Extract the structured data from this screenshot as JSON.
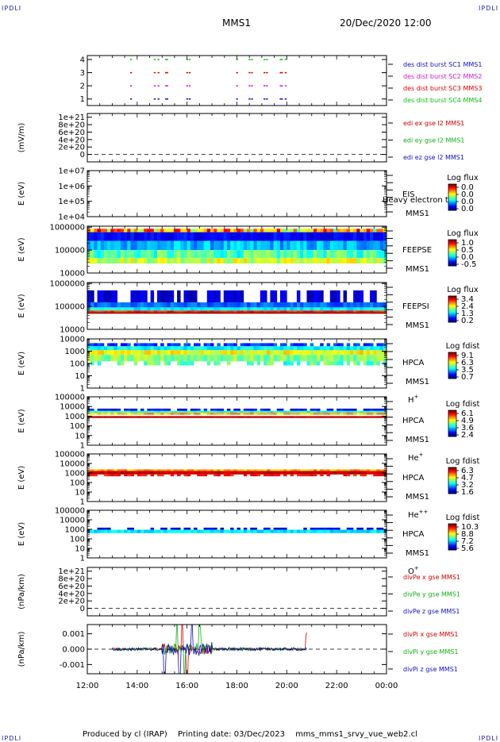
{
  "header": {
    "corner_tl": "IPDLI",
    "corner_tr": "IPDLI",
    "corner_bl": "IPDLI",
    "corner_br": "IPDLI",
    "spacecraft": "MMS1",
    "datetime": "20/Dec/2020 12:00"
  },
  "footer": {
    "produced_by": "Produced by cl (IRAP)",
    "printing_date": "Printing date: 03/Dec/2023",
    "script_name": "mms_mms1_srvy_vue_web2.cl"
  },
  "chart_data": [
    {
      "type": "scatter",
      "panel": "des-dist-burst",
      "ylabel": "",
      "ylim": [
        0.5,
        4.3
      ],
      "yticks": [
        "1",
        "2",
        "3",
        "4"
      ],
      "series": [
        {
          "name": "des dist burst SC1 MMS1",
          "color": "#1010c0",
          "y": 1,
          "x_hours": [
            13.75,
            14.7,
            14.85,
            15.15,
            15.2,
            16.0,
            16.1,
            18.0,
            18.5,
            18.6,
            19.1,
            19.2,
            19.75,
            19.8,
            19.95
          ]
        },
        {
          "name": "des dist burst SC2 MMS2",
          "color": "#d01ad0",
          "y": 2,
          "x_hours": [
            13.75,
            14.7,
            14.85,
            15.15,
            15.2,
            16.0,
            16.1,
            18.0,
            18.5,
            18.6,
            19.1,
            19.2,
            19.75,
            19.8,
            19.95
          ]
        },
        {
          "name": "des dist burst SC3 MMS3",
          "color": "#e00000",
          "y": 3,
          "x_hours": [
            13.75,
            14.7,
            14.85,
            15.15,
            15.2,
            16.0,
            16.1,
            18.0,
            18.5,
            18.6,
            19.1,
            19.2,
            19.75,
            19.8,
            19.95
          ]
        },
        {
          "name": "des dist burst SC4 MMS4",
          "color": "#10c010",
          "y": 4,
          "x_hours": [
            13.75,
            14.7,
            14.85,
            15.15,
            15.2,
            16.0,
            16.1,
            18.0,
            18.5,
            18.6,
            19.1,
            19.2,
            19.75,
            19.8,
            19.95
          ]
        }
      ]
    },
    {
      "type": "line",
      "panel": "edi-e",
      "ylabel": "(mV/m)",
      "ylim": [
        -2e+20,
        1.1e+21
      ],
      "yticks": [
        "0",
        "2e+20",
        "4e+20",
        "6e+20",
        "8e+20",
        "1e+21"
      ],
      "zero_line": true,
      "series": [
        {
          "name": "edi ex gse l2 MMS1",
          "color": "#d00000",
          "values": []
        },
        {
          "name": "edi ey gse l2 MMS1",
          "color": "#10b010",
          "values": []
        },
        {
          "name": "edi ez gse l2 MMS1",
          "color": "#1010c0",
          "values": []
        }
      ]
    },
    {
      "type": "heatmap",
      "panel": "eis",
      "ylabel": "E (eV)",
      "yscale": "log",
      "ylim": [
        10000.0,
        10000000.0
      ],
      "yticks": [
        "1e+04",
        "1e+05",
        "1e+06",
        "1e+07"
      ],
      "instrument": "EIS",
      "instrument_line2": "MMS1",
      "overlay_text": "Heavy electron to",
      "colorbar": {
        "title": "Log flux",
        "ticks": [
          "0.0",
          "0.0",
          "0.0",
          "0.0"
        ]
      },
      "data_bands": []
    },
    {
      "type": "heatmap",
      "panel": "feeps-e",
      "ylabel": "E (eV)",
      "yscale": "log",
      "ylim": [
        10000.0,
        1100000.0
      ],
      "yticks": [
        "10000",
        "100000",
        "1000000"
      ],
      "instrument": "FEEPSE",
      "instrument_line2": "MMS1",
      "colorbar": {
        "title": "Log flux",
        "ticks": [
          "1.0",
          "0.5",
          "0.0",
          "-0.5"
        ]
      },
      "x_range_hours": [
        12.0,
        24.0
      ],
      "data_bands": [
        {
          "e_low": 600000.0,
          "e_high": 850000.0,
          "level": 0.7,
          "speckle": 0.25
        },
        {
          "e_low": 250000.0,
          "e_high": 600000.0,
          "level": 0.12,
          "speckle": 0.05
        },
        {
          "e_low": 100000.0,
          "e_high": 250000.0,
          "level": 0.3,
          "speckle": 0.08
        },
        {
          "e_low": 45000.0,
          "e_high": 100000.0,
          "level": 0.45,
          "speckle": 0.1
        },
        {
          "e_low": 26000.0,
          "e_high": 45000.0,
          "level": 0.58,
          "speckle": 0.1
        }
      ]
    },
    {
      "type": "heatmap",
      "panel": "feeps-i",
      "ylabel": "E (eV)",
      "yscale": "log",
      "ylim": [
        10000.0,
        1100000.0
      ],
      "yticks": [
        "10000",
        "100000",
        "1000000"
      ],
      "instrument": "FEEPSI",
      "instrument_line2": "MMS1",
      "colorbar": {
        "title": "Log flux",
        "ticks": [
          "3.4",
          "2.4",
          "1.3",
          "0.2"
        ]
      },
      "x_range_hours": [
        12.0,
        24.0
      ],
      "data_bands": [
        {
          "e_low": 150000.0,
          "e_high": 500000.0,
          "level": 0.08,
          "speckle": 0.05,
          "sparse": 0.55
        },
        {
          "e_low": 90000.0,
          "e_high": 150000.0,
          "level": 0.22,
          "speckle": 0.06
        },
        {
          "e_low": 65000.0,
          "e_high": 90000.0,
          "level": 0.38,
          "speckle": 0.06
        },
        {
          "e_low": 55000.0,
          "e_high": 65000.0,
          "level": 0.85,
          "speckle": 0.05
        },
        {
          "e_low": 48000.0,
          "e_high": 55000.0,
          "level": 0.97,
          "speckle": 0.02
        }
      ]
    },
    {
      "type": "heatmap",
      "panel": "hpca-h",
      "ylabel": "E (eV)",
      "yscale": "log",
      "ylim": [
        1,
        10000.0
      ],
      "yticks": [
        "1",
        "10",
        "100",
        "1000",
        "10000"
      ],
      "instrument": "HPCA",
      "instrument_line2": "MMS1",
      "species": "H",
      "species_sup": "+",
      "colorbar": {
        "title": "Log fdist",
        "ticks": [
          "9.1",
          "6.3",
          "3.5",
          "0.7"
        ]
      },
      "x_range_hours": [
        12.0,
        24.0
      ],
      "data_bands": [
        {
          "e_low": 2500,
          "e_high": 4500,
          "level": 0.18,
          "speckle": 0.06,
          "sparse": 0.7
        },
        {
          "e_low": 1200,
          "e_high": 2500,
          "level": 0.38,
          "speckle": 0.06
        },
        {
          "e_low": 500,
          "e_high": 1200,
          "level": 0.62,
          "speckle": 0.08
        },
        {
          "e_low": 150,
          "e_high": 500,
          "level": 0.5,
          "speckle": 0.08
        },
        {
          "e_low": 70,
          "e_high": 150,
          "level": 0.45,
          "speckle": 0.1,
          "sparse": 0.6
        }
      ]
    },
    {
      "type": "heatmap",
      "panel": "hpca-he-plus",
      "ylabel": "E (eV)",
      "yscale": "log",
      "ylim": [
        1,
        100000.0
      ],
      "yticks": [
        "1",
        "10",
        "100",
        "1000",
        "10000",
        "100000"
      ],
      "instrument": "HPCA",
      "instrument_line2": "MMS1",
      "species": "He",
      "species_sup": "+",
      "colorbar": {
        "title": "Log fdist",
        "ticks": [
          "6.1",
          "4.9",
          "3.6",
          "2.4"
        ]
      },
      "x_range_hours": [
        12.0,
        24.0
      ],
      "data_bands": [
        {
          "e_low": 3500,
          "e_high": 6000,
          "level": 0.12,
          "speckle": 0.06,
          "sparse": 0.75
        },
        {
          "e_low": 2200,
          "e_high": 3500,
          "level": 0.4,
          "speckle": 0.06
        },
        {
          "e_low": 1400,
          "e_high": 2200,
          "level": 0.7,
          "speckle": 0.08
        },
        {
          "e_low": 650,
          "e_high": 1000,
          "level": 0.95,
          "speckle": 0.02
        }
      ]
    },
    {
      "type": "heatmap",
      "panel": "hpca-he-plus-plus",
      "ylabel": "E (eV)",
      "yscale": "log",
      "ylim": [
        1,
        100000.0
      ],
      "yticks": [
        "1",
        "10",
        "100",
        "1000",
        "10000",
        "100000"
      ],
      "instrument": "HPCA",
      "instrument_line2": "MMS1",
      "species": "He",
      "species_sup": "++",
      "colorbar": {
        "title": "Log fdist",
        "ticks": [
          "6.3",
          "4.7",
          "3.2",
          "1.6"
        ]
      },
      "x_range_hours": [
        12.0,
        24.0
      ],
      "data_bands": [
        {
          "e_low": 1600,
          "e_high": 2400,
          "level": 0.72,
          "speckle": 0.08
        },
        {
          "e_low": 700,
          "e_high": 1600,
          "level": 0.93,
          "speckle": 0.03
        },
        {
          "e_low": 450,
          "e_high": 700,
          "level": 0.86,
          "speckle": 0.05,
          "sparse": 0.6
        }
      ]
    },
    {
      "type": "heatmap",
      "panel": "hpca-o-plus",
      "ylabel": "E (eV)",
      "yscale": "log",
      "ylim": [
        1,
        100000.0
      ],
      "yticks": [
        "1",
        "10",
        "100",
        "1000",
        "10000",
        "100000"
      ],
      "instrument": "HPCA",
      "instrument_line2": "MMS1",
      "species": "O",
      "species_sup": "+",
      "colorbar": {
        "title": "Log fdist",
        "ticks": [
          "10.3",
          "8.8",
          "7.2",
          "5.6"
        ]
      },
      "x_range_hours": [
        12.0,
        24.0
      ],
      "data_bands": [
        {
          "e_low": 900,
          "e_high": 1500,
          "level": 0.1,
          "speckle": 0.05,
          "sparse": 0.6
        },
        {
          "e_low": 400,
          "e_high": 900,
          "level": 0.35,
          "speckle": 0.05
        }
      ]
    },
    {
      "type": "line",
      "panel": "divpe",
      "ylabel": "(nPa/km)",
      "ylim": [
        -2e+20,
        1.1e+21
      ],
      "yticks": [
        "0",
        "2e+20",
        "4e+20",
        "6e+20",
        "8e+20",
        "1e+21"
      ],
      "zero_line": true,
      "series": [
        {
          "name": "divPe x gse MMS1",
          "color": "#d00000",
          "values": []
        },
        {
          "name": "divPe y gse MMS1",
          "color": "#10b010",
          "values": []
        },
        {
          "name": "divPe z gse MMS1",
          "color": "#1010c0",
          "values": []
        }
      ]
    },
    {
      "type": "line",
      "panel": "divpi",
      "ylabel": "(nPa/km)",
      "ylim": [
        -0.0016,
        0.0016
      ],
      "yticks": [
        "-0.001",
        "0.000",
        "0.001"
      ],
      "zero_line": true,
      "x_range_hours": [
        13.0,
        20.8
      ],
      "series": [
        {
          "name": "divPi x gse MMS1",
          "color": "#d00000",
          "noise": 8e-05,
          "spikes": [
            [
              15.8,
              0.0012
            ],
            [
              16.0,
              -0.0009
            ],
            [
              20.8,
              0.0011
            ]
          ]
        },
        {
          "name": "divPi y gse MMS1",
          "color": "#10b010",
          "noise": 9e-05,
          "spikes": [
            [
              15.6,
              0.0008
            ],
            [
              15.9,
              -0.0008
            ],
            [
              16.5,
              0.0007
            ]
          ]
        },
        {
          "name": "divPi z gse MMS1",
          "color": "#1010c0",
          "noise": 0.0001,
          "spikes": [
            [
              15.1,
              -0.0007
            ],
            [
              15.7,
              -0.0009
            ],
            [
              16.2,
              0.0006
            ]
          ]
        }
      ]
    }
  ],
  "x_axis": {
    "range_hours": [
      12,
      24
    ],
    "tick_labels": [
      "12:00",
      "14:00",
      "16:00",
      "18:00",
      "20:00",
      "22:00",
      "00:00"
    ]
  }
}
